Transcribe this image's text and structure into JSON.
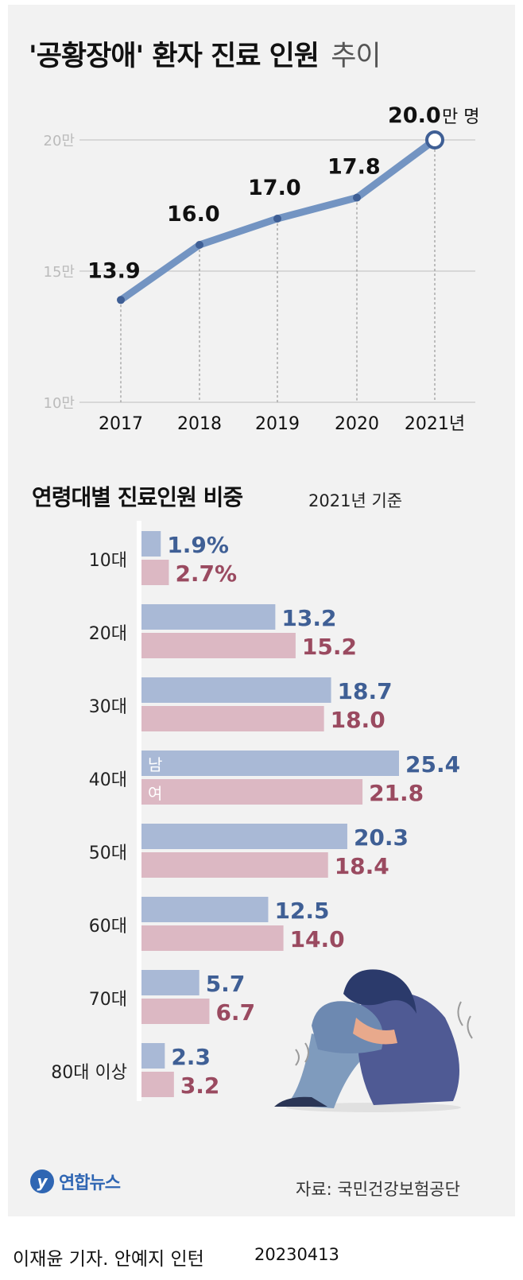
{
  "title": {
    "main": "'공황장애' 환자 진료 인원",
    "suffix": "추이"
  },
  "chart_data": [
    {
      "type": "line",
      "title": "'공황장애' 환자 진료 인원 추이",
      "categories": [
        "2017",
        "2018",
        "2019",
        "2020",
        "2021년"
      ],
      "values": [
        13.9,
        16.0,
        17.0,
        17.8,
        20.0
      ],
      "value_labels": [
        "13.9",
        "16.0",
        "17.0",
        "17.8",
        "20.0"
      ],
      "unit_label": "만 명",
      "y_ticks": [
        "20만",
        "15만",
        "10만"
      ],
      "y_tick_values": [
        20,
        15,
        10
      ],
      "ylim": [
        10,
        20
      ],
      "color": "#7394c2"
    },
    {
      "type": "bar",
      "title": "연령대별 진료인원 비중",
      "note": "2021년 기준",
      "categories": [
        "10대",
        "20대",
        "30대",
        "40대",
        "50대",
        "60대",
        "70대",
        "80대 이상"
      ],
      "series": [
        {
          "name": "남",
          "color": "#a9b9d6",
          "label_color": "#3f5f95",
          "values": [
            1.9,
            13.2,
            18.7,
            25.4,
            20.3,
            12.5,
            5.7,
            2.3
          ],
          "labels": [
            "1.9%",
            "13.2",
            "18.7",
            "25.4",
            "20.3",
            "12.5",
            "5.7",
            "2.3"
          ]
        },
        {
          "name": "여",
          "color": "#dcb8c3",
          "label_color": "#9a4a60",
          "values": [
            2.7,
            15.2,
            18.0,
            21.8,
            18.4,
            14.0,
            6.7,
            3.2
          ],
          "labels": [
            "2.7%",
            "15.2",
            "18.0",
            "21.8",
            "18.4",
            "14.0",
            "6.7",
            "3.2"
          ]
        }
      ],
      "xlim": [
        0,
        25.4
      ]
    }
  ],
  "footer": {
    "source": "자료: 국민건강보험공단",
    "logo_text": "연합뉴스",
    "credit": "이재윤 기자. 안예지 인턴",
    "date": "20230413"
  }
}
